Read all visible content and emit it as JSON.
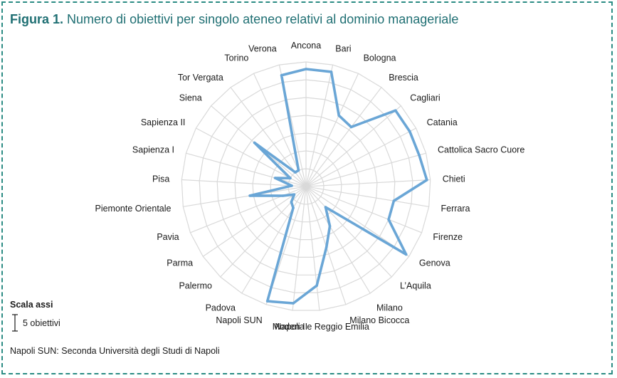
{
  "figure": {
    "label": "Figura 1.",
    "title": "Numero di obiettivi per singolo ateneo relativi al dominio manageriale"
  },
  "scale": {
    "title": "Scala assi",
    "label": "5 obiettivi"
  },
  "footnote": "Napoli SUN: Seconda Università degli Studi di Napoli",
  "colors": {
    "series": "#6aa6d6",
    "grid": "#d9d9d9",
    "accent": "#1f6f73",
    "border": "#2c8c84"
  },
  "chart_data": {
    "type": "radar",
    "grid": true,
    "ring_step": 5,
    "rmax": 35,
    "categories": [
      "Ancona",
      "Bari",
      "Bologna",
      "Brescia",
      "Cagliari",
      "Catania",
      "Cattolica Sacro Cuore",
      "Chieti",
      "Ferrara",
      "Firenze",
      "Genova",
      "L’Aquila",
      "Milano",
      "Milano Bicocca",
      "Modena e Reggio Emilia",
      "Napoli II",
      "Napoli SUN",
      "Padova",
      "Palermo",
      "Parma",
      "Pavia",
      "Piemonte Orientale",
      "Pisa",
      "Sapienza I",
      "Sapienza II",
      "Siena",
      "Tor Vergata",
      "Torino",
      "Verona"
    ],
    "values": [
      33,
      33,
      22,
      21,
      33,
      33,
      33,
      34,
      25,
      25,
      34,
      8,
      13,
      18,
      28,
      33,
      34,
      7,
      6,
      4,
      7,
      16,
      4,
      9,
      5,
      19,
      5,
      5,
      32
    ]
  }
}
